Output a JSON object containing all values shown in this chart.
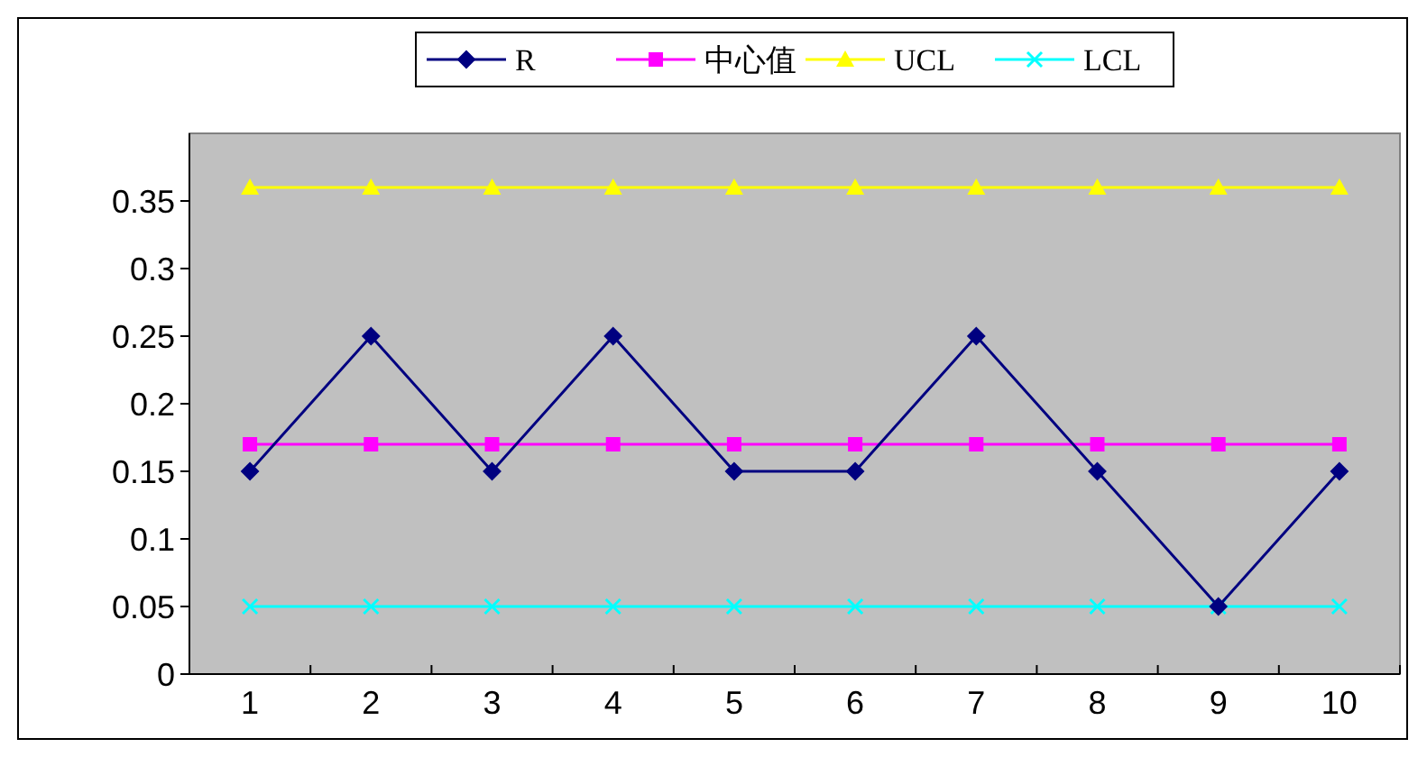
{
  "chart_data": {
    "type": "line",
    "categories": [
      "1",
      "2",
      "3",
      "4",
      "5",
      "6",
      "7",
      "8",
      "9",
      "10"
    ],
    "series": [
      {
        "name": "R",
        "color": "#000080",
        "marker": "diamond",
        "values": [
          0.15,
          0.25,
          0.15,
          0.25,
          0.15,
          0.15,
          0.25,
          0.15,
          0.05,
          0.15
        ]
      },
      {
        "name": "中心值",
        "color": "#ff00ff",
        "marker": "square",
        "values": [
          0.17,
          0.17,
          0.17,
          0.17,
          0.17,
          0.17,
          0.17,
          0.17,
          0.17,
          0.17
        ]
      },
      {
        "name": "UCL",
        "color": "#ffff00",
        "marker": "triangle",
        "values": [
          0.36,
          0.36,
          0.36,
          0.36,
          0.36,
          0.36,
          0.36,
          0.36,
          0.36,
          0.36
        ]
      },
      {
        "name": "LCL",
        "color": "#00ffff",
        "marker": "cross",
        "values": [
          0.05,
          0.05,
          0.05,
          0.05,
          0.05,
          0.05,
          0.05,
          0.05,
          0.05,
          0.05
        ]
      }
    ],
    "ylim": [
      0,
      0.4
    ],
    "yticks": [
      0,
      0.05,
      0.1,
      0.15,
      0.2,
      0.25,
      0.3,
      0.35
    ],
    "grid": false,
    "legend": "top"
  }
}
